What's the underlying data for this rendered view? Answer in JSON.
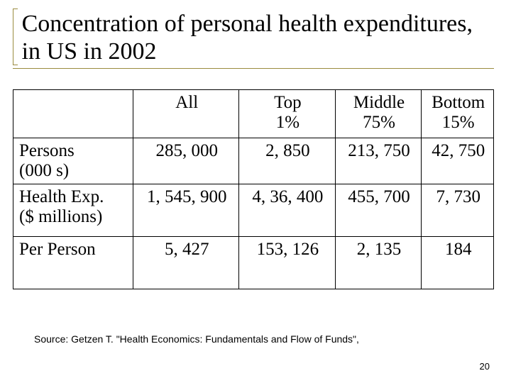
{
  "colors": {
    "accent": "#9a8b3f",
    "text": "#000000",
    "background": "#ffffff",
    "table_border": "#000000"
  },
  "title": "Concentration of personal health expenditures, in US in 2002",
  "table": {
    "columns": [
      {
        "label_line1": "",
        "label_line2": ""
      },
      {
        "label_line1": "All",
        "label_line2": ""
      },
      {
        "label_line1": "Top",
        "label_line2": "1%"
      },
      {
        "label_line1": "Middle",
        "label_line2": "75%"
      },
      {
        "label_line1": "Bottom",
        "label_line2": "15%"
      }
    ],
    "rows": [
      {
        "label_line1": "Persons",
        "label_line2": "(000 s)",
        "cells": [
          "285, 000",
          "2, 850",
          "213, 750",
          "42, 750"
        ]
      },
      {
        "label_line1": "Health Exp.",
        "label_line2": "($ millions)",
        "cells": [
          "1, 545, 900",
          "4, 36, 400",
          "455, 700",
          "7, 730"
        ]
      },
      {
        "label_line1": "Per Person",
        "label_line2": "",
        "cells": [
          "5, 427",
          "153, 126",
          "2, 135",
          "184"
        ]
      }
    ]
  },
  "source": "Source: Getzen T. \"Health Economics: Fundamentals and Flow of Funds\",",
  "page_number": "20"
}
